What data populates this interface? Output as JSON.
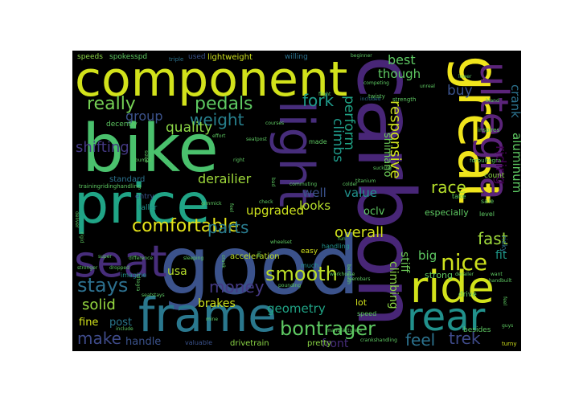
{
  "palette": {
    "background": "#000000",
    "figure_background": "#ffffff",
    "viridis": [
      "#440154",
      "#472d7b",
      "#3b528b",
      "#2c728e",
      "#21918c",
      "#28ae80",
      "#5ec962",
      "#addc30",
      "#fde725"
    ]
  },
  "words": {
    "component": "component",
    "bike": "bike",
    "price": "price",
    "good": "good",
    "carbon": "carbon",
    "great": "great",
    "light": "light",
    "ultegra": "ultegra",
    "seat": "seat",
    "frame": "frame",
    "ride": "ride",
    "rear": "rear",
    "bontrager": "bontrager",
    "comfortable": "comfortable",
    "pedals": "pedals",
    "really": "really",
    "weight": "weight",
    "fork": "fork",
    "parts": "parts",
    "nice": "nice",
    "smooth": "smooth",
    "stays": "stays",
    "money": "money",
    "solid": "solid",
    "make": "make",
    "fast": "fast",
    "race": "race",
    "overall": "overall",
    "shifting": "shifting",
    "feel": "feel",
    "trek": "trek",
    "quality": "quality",
    "group": "group",
    "derailier": "derailier",
    "upgraded": "upgraded",
    "looks": "looks",
    "well": "well",
    "value": "value",
    "buy": "buy",
    "best": "best",
    "though": "though",
    "perform": "perform",
    "climbs": "climbs",
    "responsive": "responsive",
    "shimano": "shimano",
    "riding": "riding",
    "aluminum": "aluminum",
    "crank": "crank",
    "stiff": "stiff",
    "big": "big",
    "climbing": "climbing",
    "geometry": "geometry",
    "brakes": "brakes",
    "usa": "usa",
    "fine": "fine",
    "post": "post",
    "handle": "handle",
    "front": "front",
    "fit": "fit",
    "oclv": "oclv",
    "acceleration": "acceleration",
    "lightweight": "lightweight",
    "especially": "especially",
    "strong": "strong",
    "lot": "lot",
    "drivetrain": "drivetrain",
    "pretty": "pretty",
    "speeds": "speeds",
    "spokesspd": "spokesspd",
    "willing": "willing",
    "used": "used",
    "triple": "triple",
    "standard": "standard",
    "entry": "entry",
    "taller": "taller",
    "decently": "decently",
    "easy": "easy",
    "besides": "besides",
    "risky": "risky",
    "sale": "sale",
    "take": "take",
    "count": "count",
    "level": "level",
    "made": "made",
    "imagine": "imagine",
    "valuable": "valuable",
    "drive": "drive",
    "handling": "handling",
    "speed": "speed",
    "much": "much",
    "turny": "turny",
    "included": "included",
    "strength": "strength",
    "twisty": "twisty",
    "inspires": "inspires",
    "forbultegra": "forbultegra",
    "beginner": "beginner",
    "effort": "effort",
    "seatpost": "seatpost",
    "commuting": "commuting",
    "colder": "colder",
    "titanium": "titanium",
    "sucking": "sucking",
    "lower": "lower",
    "competing": "competing",
    "feel2": "feel",
    "flight": "flight",
    "courses": "courses",
    "beneath": "beneath",
    "ultegra2": "ultegra",
    "pounding": "pounding",
    "workhorse": "workhorse",
    "aerobars": "aerobars",
    "manufacturers": "manufacturers",
    "bumps": "bumps",
    "mine": "mine",
    "guys": "guys",
    "difference": "difference",
    "wheelset": "wheelset",
    "gimmick": "gimmick",
    "trainingridinghandling": "trainingridinghandling",
    "crankshandling": "crankshandling",
    "check": "check",
    "lot2": "lot",
    "rigid": "rigid",
    "deliver": "deliver",
    "super": "super",
    "crank2": "crank",
    "sleeping": "sleeping",
    "stronger": "stronger",
    "dropped": "dropped",
    "include": "include",
    "handbuilt": "handbuilt",
    "want": "want",
    "derailer": "derailer",
    "bland": "bland",
    "fun": "fun",
    "bad": "bad",
    "right": "right",
    "unreal": "unreal",
    "seatstays": "seatstays",
    "feel3": "feel",
    "sized": "sized"
  }
}
